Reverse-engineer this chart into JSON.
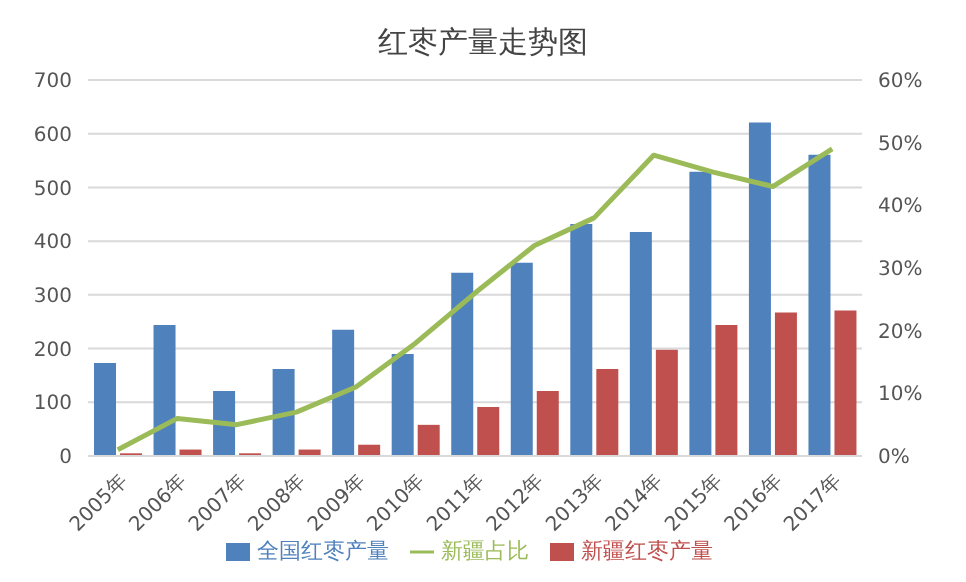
{
  "chart_data": {
    "type": "bar",
    "title": "红枣产量走势图",
    "categories": [
      "2005年",
      "2006年",
      "2007年",
      "2008年",
      "2009年",
      "2010年",
      "2011年",
      "2012年",
      "2013年",
      "2014年",
      "2015年",
      "2016年",
      "2017年"
    ],
    "series": [
      {
        "name": "全国红枣产量",
        "color": "#4f81bd",
        "values": [
          173,
          244,
          121,
          162,
          235,
          190,
          341,
          360,
          432,
          417,
          529,
          621,
          561
        ]
      },
      {
        "name": "新疆红枣产量",
        "color": "#c0504d",
        "values": [
          5,
          12,
          5,
          12,
          21,
          58,
          91,
          121,
          162,
          198,
          244,
          267,
          271
        ]
      },
      {
        "name": "新疆占比",
        "type": "line",
        "axis": "y2",
        "color": "#9bbb59",
        "values": [
          1,
          6,
          5,
          7,
          11,
          18,
          26,
          33.6,
          38,
          48,
          45.3,
          43,
          49
        ]
      }
    ],
    "ylim": [
      0,
      700
    ],
    "yticks": [
      0,
      100,
      200,
      300,
      400,
      500,
      600,
      700
    ],
    "y2lim": [
      0,
      60
    ],
    "y2ticks": [
      {
        "value": 0,
        "label": "0%"
      },
      {
        "value": 10,
        "label": "10%"
      },
      {
        "value": 20,
        "label": "20%"
      },
      {
        "value": 30,
        "label": "30%"
      },
      {
        "value": 40,
        "label": "40%"
      },
      {
        "value": 50,
        "label": "50%"
      },
      {
        "value": 60,
        "label": "60%"
      }
    ],
    "grid": "y",
    "legend": "bottom",
    "marker": "none"
  }
}
